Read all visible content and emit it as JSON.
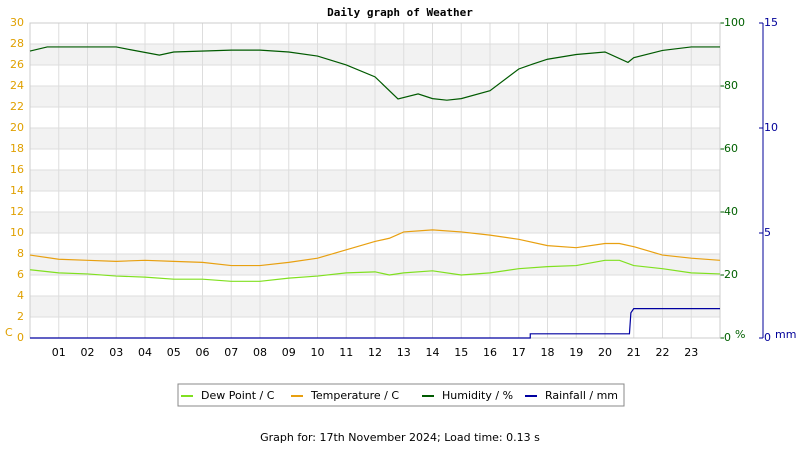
{
  "chart_data": {
    "type": "line",
    "title": "Daily graph of Weather",
    "y_label": "C",
    "y2_label": "%",
    "y3_label": "mm",
    "xlim": [
      0,
      24
    ],
    "xticks": [
      {
        "value": 1,
        "label": "01"
      },
      {
        "value": 2,
        "label": "02"
      },
      {
        "value": 3,
        "label": "03"
      },
      {
        "value": 4,
        "label": "04"
      },
      {
        "value": 5,
        "label": "05"
      },
      {
        "value": 6,
        "label": "06"
      },
      {
        "value": 7,
        "label": "07"
      },
      {
        "value": 8,
        "label": "08"
      },
      {
        "value": 9,
        "label": "09"
      },
      {
        "value": 10,
        "label": "10"
      },
      {
        "value": 11,
        "label": "11"
      },
      {
        "value": 12,
        "label": "12"
      },
      {
        "value": 13,
        "label": "13"
      },
      {
        "value": 14,
        "label": "14"
      },
      {
        "value": 15,
        "label": "15"
      },
      {
        "value": 16,
        "label": "16"
      },
      {
        "value": 17,
        "label": "17"
      },
      {
        "value": 18,
        "label": "18"
      },
      {
        "value": 19,
        "label": "19"
      },
      {
        "value": 20,
        "label": "20"
      },
      {
        "value": 21,
        "label": "21"
      },
      {
        "value": 22,
        "label": "22"
      },
      {
        "value": 23,
        "label": "23"
      }
    ],
    "ylim": [
      0,
      30
    ],
    "yticks": [
      0,
      2,
      4,
      6,
      8,
      10,
      12,
      14,
      16,
      18,
      20,
      22,
      24,
      26,
      28,
      30
    ],
    "y2lim": [
      0,
      100
    ],
    "y2ticks": [
      0,
      20,
      40,
      60,
      80,
      100
    ],
    "y3lim": [
      0,
      15
    ],
    "y3ticks": [
      0,
      5,
      10,
      15
    ],
    "grid": true,
    "series": [
      {
        "name": "Dew Point / C",
        "color": "#80e020",
        "x": [
          0,
          1,
          2,
          3,
          4,
          5,
          6,
          7,
          8,
          9,
          10,
          11,
          12,
          12.5,
          13,
          14,
          15,
          16,
          17,
          18,
          19,
          20,
          20.5,
          21,
          22,
          23,
          24
        ],
        "values": [
          6.5,
          6.2,
          6.1,
          5.9,
          5.8,
          5.6,
          5.6,
          5.4,
          5.4,
          5.7,
          5.9,
          6.2,
          6.3,
          6.0,
          6.2,
          6.4,
          6.0,
          6.2,
          6.6,
          6.8,
          6.9,
          7.4,
          7.4,
          6.9,
          6.6,
          6.2,
          6.1
        ]
      },
      {
        "name": "Temperature / C",
        "color": "#e8a010",
        "x": [
          0,
          1,
          2,
          3,
          4,
          5,
          6,
          7,
          8,
          9,
          10,
          11,
          12,
          12.5,
          13,
          14,
          15,
          16,
          17,
          18,
          19,
          20,
          20.5,
          21,
          22,
          23,
          24
        ],
        "values": [
          7.9,
          7.5,
          7.4,
          7.3,
          7.4,
          7.3,
          7.2,
          6.9,
          6.9,
          7.2,
          7.6,
          8.4,
          9.2,
          9.5,
          10.1,
          10.3,
          10.1,
          9.8,
          9.4,
          8.8,
          8.6,
          9.0,
          9.0,
          8.7,
          7.9,
          7.6,
          7.4
        ]
      },
      {
        "name": "Humidity / %",
        "color": "#005a00",
        "axis": "y2",
        "x": [
          0,
          0.6,
          1,
          3,
          3.5,
          4.5,
          5,
          7,
          8,
          9,
          10,
          11,
          12,
          12.8,
          13.5,
          14,
          14.5,
          15,
          16,
          17,
          17.5,
          18,
          19,
          20,
          20.8,
          21,
          22,
          23,
          24
        ],
        "values": [
          91.1,
          92.4,
          92.4,
          92.4,
          91.5,
          89.8,
          90.8,
          91.4,
          91.4,
          90.8,
          89.5,
          86.7,
          82.9,
          75.9,
          77.5,
          76,
          75.5,
          76,
          78.5,
          85.4,
          87,
          88.5,
          90,
          90.8,
          87.5,
          89,
          91.3,
          92.4,
          92.4
        ]
      },
      {
        "name": "Rainfall / mm",
        "color": "#0000a0",
        "axis": "y3",
        "x": [
          0,
          17.4,
          17.4,
          20.85,
          20.9,
          21.0,
          24
        ],
        "values": [
          0,
          0,
          0.2,
          0.2,
          1.2,
          1.4,
          1.4
        ]
      }
    ],
    "footer": "Graph for: 17th November 2024; Load time: 0.13 s"
  }
}
